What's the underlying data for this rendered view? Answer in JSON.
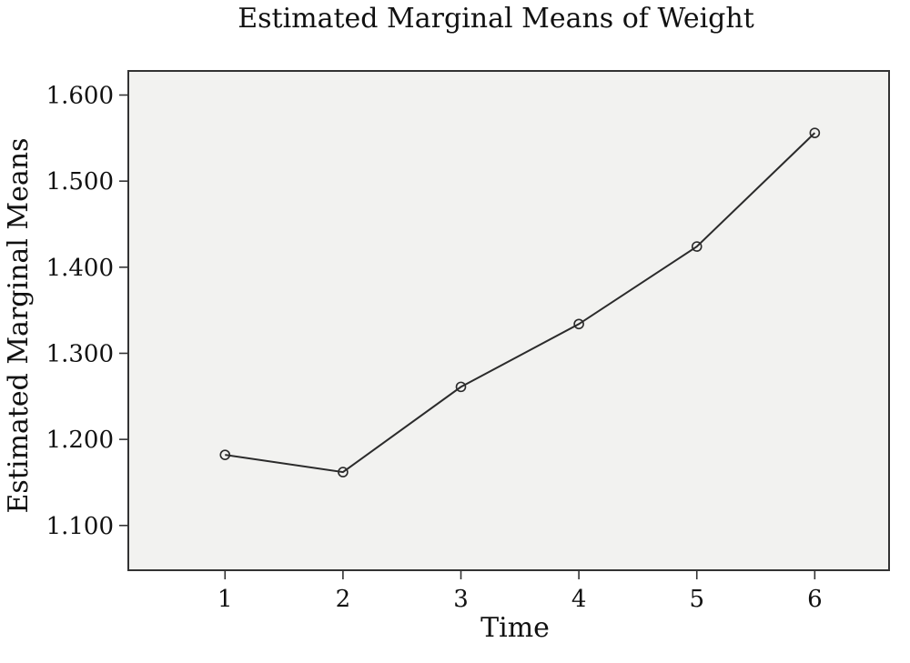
{
  "chart_data": {
    "type": "line",
    "title": "Estimated Marginal Means of Weight",
    "xlabel": "Time",
    "ylabel": "Estimated Marginal Means",
    "x": [
      1,
      2,
      3,
      4,
      5,
      6
    ],
    "x_tick_labels": [
      "1",
      "2",
      "3",
      "4",
      "5",
      "6"
    ],
    "y_ticks": [
      1.1,
      1.2,
      1.3,
      1.4,
      1.5,
      1.6
    ],
    "y_tick_labels": [
      "1.100",
      "1.200",
      "1.300",
      "1.400",
      "1.500",
      "1.600"
    ],
    "ylim": [
      1.048,
      1.628
    ],
    "xlim": [
      0.18,
      6.63
    ],
    "grid": false,
    "legend": "none",
    "series": [
      {
        "values": [
          1.182,
          1.162,
          1.261,
          1.334,
          1.424,
          1.556
        ],
        "color": "#2b2b2b",
        "marker": "open-circle"
      }
    ],
    "background_color": "#f2f2f0"
  }
}
